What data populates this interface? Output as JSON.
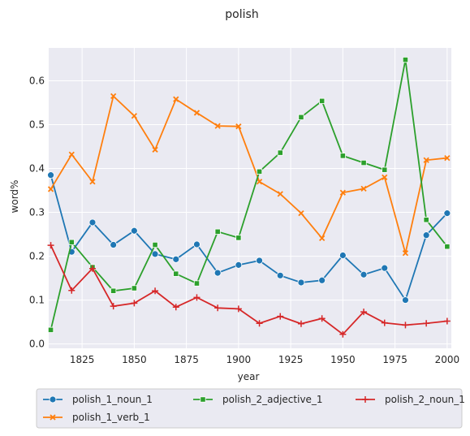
{
  "chart_data": {
    "type": "line",
    "title": "polish",
    "xlabel": "year",
    "ylabel": "word%",
    "xlim": [
      1809,
      2002
    ],
    "ylim": [
      -0.01,
      0.675
    ],
    "xticks": [
      1825,
      1850,
      1875,
      1900,
      1925,
      1950,
      1975,
      2000
    ],
    "yticks": [
      0.0,
      0.1,
      0.2,
      0.3,
      0.4,
      0.5,
      0.6
    ],
    "grid": true,
    "legend_position": "bottom",
    "x": [
      1810,
      1820,
      1830,
      1840,
      1850,
      1860,
      1870,
      1880,
      1890,
      1900,
      1910,
      1920,
      1930,
      1940,
      1950,
      1960,
      1970,
      1980,
      1990,
      2000
    ],
    "series": [
      {
        "name": "polish_1_noun_1",
        "color": "#1f77b4",
        "marker": "circle",
        "values": [
          0.385,
          0.21,
          0.277,
          0.226,
          0.258,
          0.205,
          0.193,
          0.227,
          0.162,
          0.18,
          0.19,
          0.156,
          0.14,
          0.145,
          0.202,
          0.158,
          0.173,
          0.1,
          0.248,
          0.298
        ]
      },
      {
        "name": "polish_1_verb_1",
        "color": "#ff7f0e",
        "marker": "x",
        "values": [
          0.353,
          0.432,
          0.37,
          0.565,
          0.52,
          0.443,
          0.558,
          0.527,
          0.497,
          0.496,
          0.37,
          0.342,
          0.298,
          0.241,
          0.345,
          0.354,
          0.38,
          0.207,
          0.419,
          0.424
        ]
      },
      {
        "name": "polish_2_adjective_1",
        "color": "#2ca02c",
        "marker": "square",
        "values": [
          0.032,
          0.232,
          0.175,
          0.121,
          0.127,
          0.226,
          0.16,
          0.138,
          0.256,
          0.242,
          0.393,
          0.436,
          0.517,
          0.554,
          0.429,
          0.413,
          0.397,
          0.648,
          0.283,
          0.222
        ]
      },
      {
        "name": "polish_2_noun_1",
        "color": "#d62728",
        "marker": "plus",
        "values": [
          0.225,
          0.122,
          0.172,
          0.086,
          0.093,
          0.121,
          0.084,
          0.106,
          0.082,
          0.08,
          0.047,
          0.063,
          0.046,
          0.058,
          0.022,
          0.073,
          0.048,
          0.043,
          0.047,
          0.052
        ]
      }
    ]
  }
}
